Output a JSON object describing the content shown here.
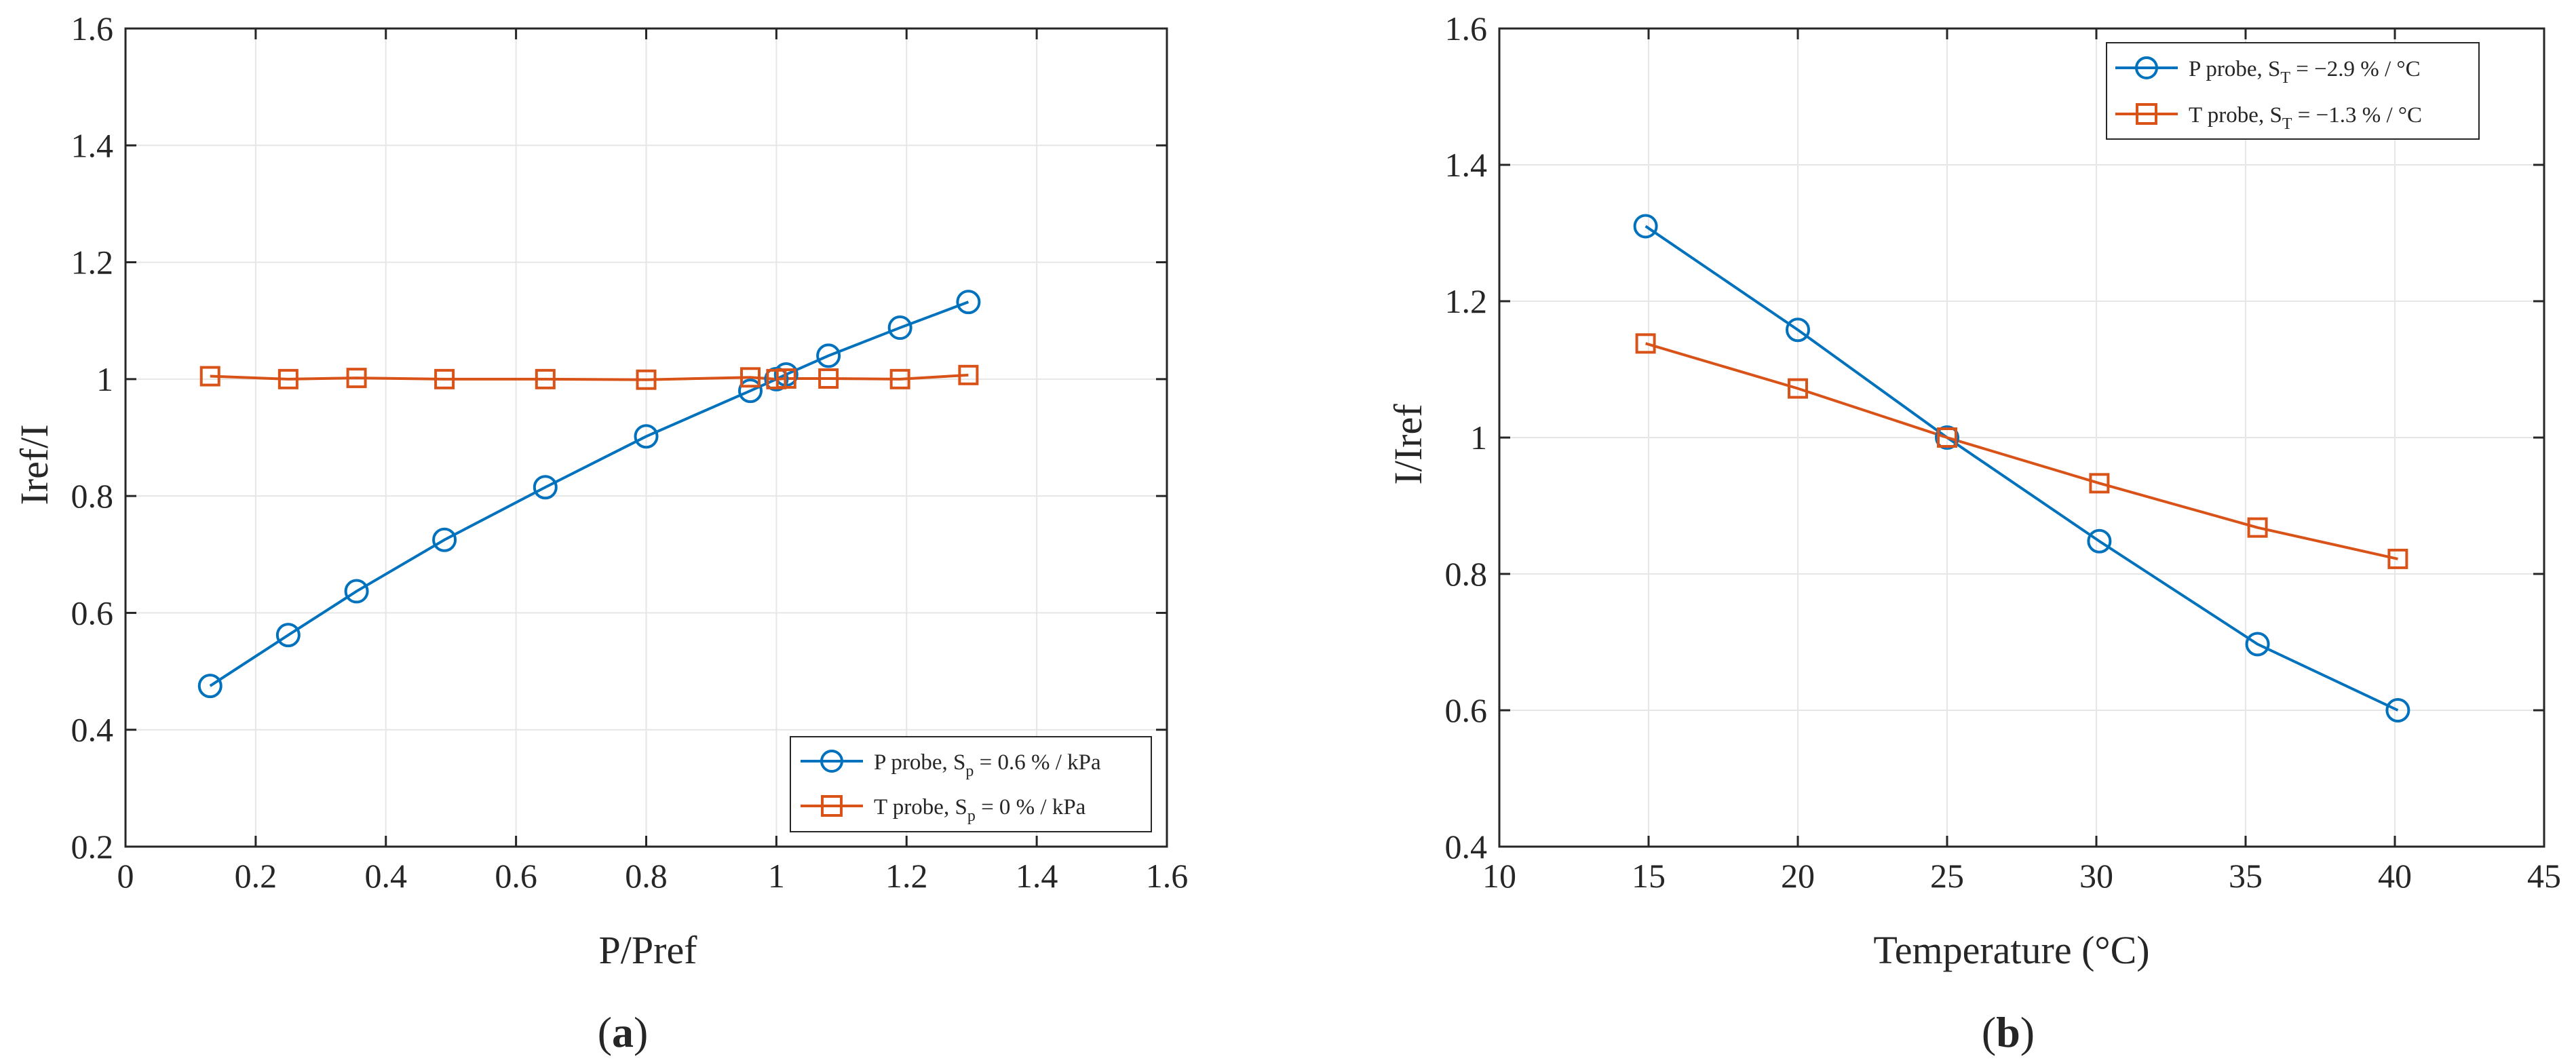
{
  "chart_data": [
    {
      "type": "line",
      "panel_label": "(a)",
      "panel_paren_open": "(",
      "panel_letter": "a",
      "panel_paren_close": ")",
      "xlabel": "P/Pref",
      "ylabel": "Iref/I",
      "xlim": [
        0,
        1.6
      ],
      "ylim": [
        0.2,
        1.6
      ],
      "xticks": [
        0,
        0.2,
        0.4,
        0.6,
        0.8,
        1,
        1.2,
        1.4,
        1.6
      ],
      "yticks": [
        0.2,
        0.4,
        0.6,
        0.8,
        1,
        1.2,
        1.4,
        1.6
      ],
      "xtick_labels": [
        "0",
        "0.2",
        "0.4",
        "0.6",
        "0.8",
        "1",
        "1.2",
        "1.4",
        "1.6"
      ],
      "ytick_labels": [
        "0.2",
        "0.4",
        "0.6",
        "0.8",
        "1",
        "1.2",
        "1.4",
        "1.6"
      ],
      "grid": true,
      "legend_position": "bottom-right",
      "series": [
        {
          "name": "P probe, Sp = 0.6 % / kPa",
          "legend_prefix": "P probe, S",
          "legend_sub": "p",
          "legend_suffix": " = 0.6 % / kPa",
          "color": "#0072BD",
          "marker": "circle",
          "x": [
            0.13,
            0.25,
            0.355,
            0.49,
            0.645,
            0.8,
            0.96,
            1.0,
            1.015,
            1.08,
            1.19,
            1.295
          ],
          "y": [
            0.475,
            0.562,
            0.637,
            0.725,
            0.815,
            0.902,
            0.98,
            1.0,
            1.008,
            1.04,
            1.088,
            1.132
          ]
        },
        {
          "name": "T probe, Sp = 0 % / kPa",
          "legend_prefix": "T probe, S",
          "legend_sub": "p",
          "legend_suffix": " = 0 % / kPa",
          "color": "#D95319",
          "marker": "square",
          "x": [
            0.13,
            0.25,
            0.355,
            0.49,
            0.645,
            0.8,
            0.96,
            1.0,
            1.015,
            1.08,
            1.19,
            1.295
          ],
          "y": [
            1.005,
            1.0,
            1.002,
            1.0,
            1.0,
            0.999,
            1.003,
            1.0,
            1.001,
            1.001,
            1.0,
            1.007
          ]
        }
      ]
    },
    {
      "type": "line",
      "panel_label": "(b)",
      "panel_paren_open": "(",
      "panel_letter": "b",
      "panel_paren_close": ")",
      "xlabel": "Temperature (°C)",
      "ylabel": "I/Iref",
      "xlim": [
        10,
        45
      ],
      "ylim": [
        0.4,
        1.6
      ],
      "xticks": [
        10,
        15,
        20,
        25,
        30,
        35,
        40,
        45
      ],
      "yticks": [
        0.4,
        0.6,
        0.8,
        1,
        1.2,
        1.4,
        1.6
      ],
      "xtick_labels": [
        "10",
        "15",
        "20",
        "25",
        "30",
        "35",
        "40",
        "45"
      ],
      "ytick_labels": [
        "0.4",
        "0.6",
        "0.8",
        "1",
        "1.2",
        "1.4",
        "1.6"
      ],
      "grid": true,
      "legend_position": "top-right",
      "series": [
        {
          "name": "P probe, ST = −2.9 % / °C",
          "legend_prefix": "P probe, S",
          "legend_sub": "T",
          "legend_suffix": " = −2.9 % / °C",
          "color": "#0072BD",
          "marker": "circle",
          "x": [
            14.9,
            20.0,
            25.0,
            30.1,
            35.4,
            40.1
          ],
          "y": [
            1.31,
            1.158,
            1.0,
            0.848,
            0.697,
            0.6
          ]
        },
        {
          "name": "T probe, ST = −1.3 % / °C",
          "legend_prefix": "T probe, S",
          "legend_sub": "T",
          "legend_suffix": " = −1.3 % / °C",
          "color": "#D95319",
          "marker": "square",
          "x": [
            14.9,
            20.0,
            25.0,
            30.1,
            35.4,
            40.1
          ],
          "y": [
            1.138,
            1.072,
            1.0,
            0.933,
            0.868,
            0.822
          ]
        }
      ]
    }
  ]
}
